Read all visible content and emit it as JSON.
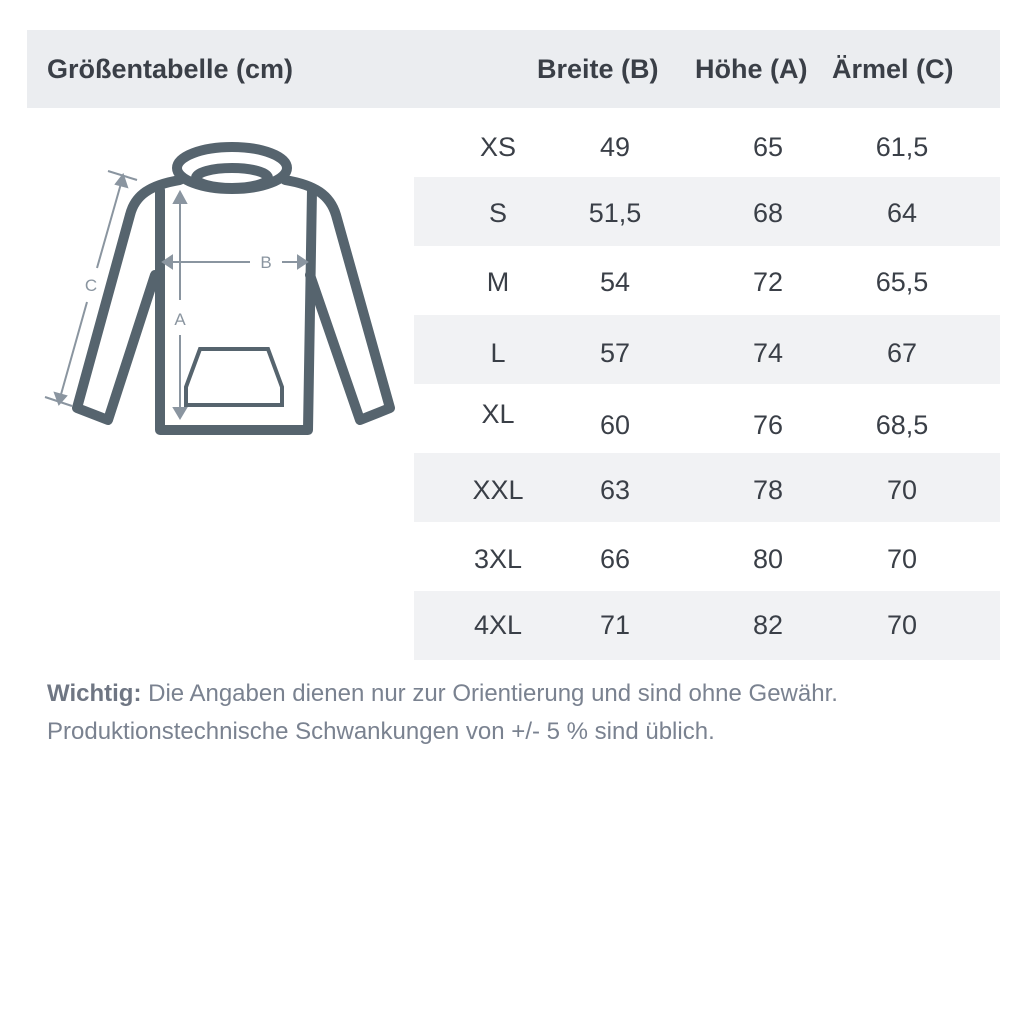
{
  "header": {
    "title": "Größentabelle (cm)",
    "columns": [
      "Breite (B)",
      "Höhe (A)",
      "Ärmel (C)"
    ]
  },
  "rows": [
    {
      "size": "XS",
      "breite": "49",
      "hoehe": "65",
      "aermel": "61,5"
    },
    {
      "size": "S",
      "breite": "51,5",
      "hoehe": "68",
      "aermel": "64"
    },
    {
      "size": "M",
      "breite": "54",
      "hoehe": "72",
      "aermel": "65,5"
    },
    {
      "size": "L",
      "breite": "57",
      "hoehe": "74",
      "aermel": "67"
    },
    {
      "size": "XL",
      "breite": "60",
      "hoehe": "76",
      "aermel": "68,5"
    },
    {
      "size": "XXL",
      "breite": "63",
      "hoehe": "78",
      "aermel": "70"
    },
    {
      "size": "3XL",
      "breite": "66",
      "hoehe": "80",
      "aermel": "70"
    },
    {
      "size": "4XL",
      "breite": "71",
      "hoehe": "82",
      "aermel": "70"
    }
  ],
  "diagram": {
    "labels": {
      "a": "A",
      "b": "B",
      "c": "C"
    },
    "icon": "hoodie-icon",
    "stroke_color": "#56646e",
    "arrow_color": "#8a95a0"
  },
  "note": {
    "label": "Wichtig:",
    "line1": "Die Angaben dienen nur zur Orientierung und sind ohne Gewähr.",
    "line2": "Produktionstechnische Schwankungen von +/- 5 % sind üblich."
  }
}
